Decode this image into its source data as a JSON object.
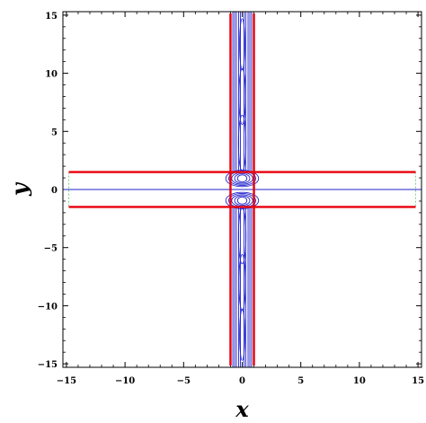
{
  "chart_data": {
    "type": "contour",
    "xlabel": "x",
    "ylabel": "y",
    "xlim": [
      -15.3,
      15.3
    ],
    "ylim": [
      -15.3,
      15.3
    ],
    "xticks": [
      -15,
      -10,
      -5,
      0,
      5,
      10,
      15
    ],
    "yticks": [
      -15,
      -10,
      -5,
      0,
      5,
      10,
      15
    ],
    "xtick_labels": [
      "−15",
      "−10",
      "−5",
      "0",
      "5",
      "10",
      "15"
    ],
    "ytick_labels": [
      "−15",
      "−10",
      "−5",
      "0",
      "5",
      "10",
      "15"
    ],
    "grid": false,
    "colors": {
      "boundary": "#e8000b",
      "contour": "#2222cc",
      "dashed": "#7fcf7f",
      "frame": "#000000"
    },
    "boundary_lines": {
      "horizontal_y": [
        1.5,
        -1.5
      ],
      "vertical_x": [
        -1.0,
        1.0
      ]
    },
    "center_line_y": 0,
    "dashed_edges_x": [
      -14.8,
      14.8
    ],
    "contours": {
      "vertical_column_halfwidths": [
        0.15,
        0.3,
        0.5,
        0.65,
        0.8
      ],
      "horizontal_band_halfheights": [
        0.15,
        0.45,
        0.75
      ],
      "lobe_center_y": 0.95,
      "lobe_halfwidths": [
        0.4,
        0.65,
        0.9,
        1.15,
        1.4
      ],
      "lobe_halfheights": [
        0.15,
        0.25,
        0.35,
        0.45,
        0.55
      ],
      "inner_ellipses": [
        {
          "cx": 0,
          "cy": 12.5,
          "rx": 0.22,
          "ry": 2.2
        },
        {
          "cx": 0,
          "cy": 8.0,
          "rx": 0.28,
          "ry": 2.4
        },
        {
          "cx": 0,
          "cy": 4.0,
          "rx": 0.32,
          "ry": 2.4
        },
        {
          "cx": 0,
          "cy": -4.0,
          "rx": 0.32,
          "ry": 2.4
        },
        {
          "cx": 0,
          "cy": -8.0,
          "rx": 0.28,
          "ry": 2.4
        },
        {
          "cx": 0,
          "cy": -12.5,
          "rx": 0.22,
          "ry": 2.2
        }
      ]
    }
  }
}
